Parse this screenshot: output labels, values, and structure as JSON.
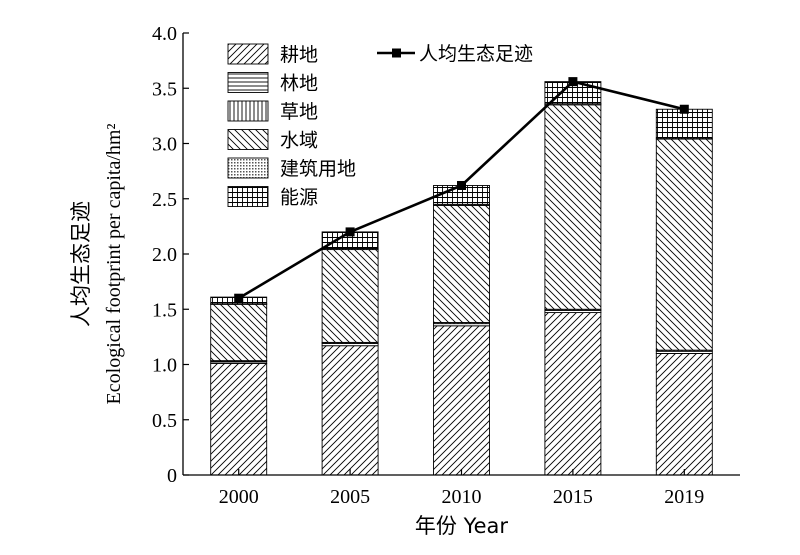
{
  "chart_data": {
    "type": "bar",
    "stacked": true,
    "categories": [
      "2000",
      "2005",
      "2010",
      "2015",
      "2019"
    ],
    "xlabel": "年份 Year",
    "ylabel_cn": "人均生态足迹",
    "ylabel_en": "Ecological footprint per capita/hm²",
    "ylim": [
      0,
      4.0
    ],
    "yticks": [
      "0",
      "0.5",
      "1.0",
      "1.5",
      "2.0",
      "2.5",
      "3.0",
      "3.5",
      "4.0"
    ],
    "series": [
      {
        "name": "耕地",
        "pattern": "diag-forward",
        "values": [
          1.01,
          1.17,
          1.35,
          1.47,
          1.1
        ]
      },
      {
        "name": "林地",
        "pattern": "horizontal",
        "values": [
          0.02,
          0.02,
          0.02,
          0.02,
          0.02
        ]
      },
      {
        "name": "草地",
        "pattern": "vertical",
        "values": [
          0.005,
          0.01,
          0.01,
          0.01,
          0.01
        ]
      },
      {
        "name": "水域",
        "pattern": "diag-back",
        "values": [
          0.51,
          0.84,
          1.06,
          1.85,
          1.91
        ]
      },
      {
        "name": "建筑用地",
        "pattern": "dots",
        "values": [
          0.005,
          0.01,
          0.01,
          0.01,
          0.01
        ]
      },
      {
        "name": "能源",
        "pattern": "grid",
        "values": [
          0.06,
          0.15,
          0.17,
          0.2,
          0.26
        ]
      }
    ],
    "line": {
      "name": "人均生态足迹",
      "values": [
        1.6,
        2.2,
        2.62,
        3.56,
        3.31
      ]
    },
    "legend_position": "top-left"
  }
}
